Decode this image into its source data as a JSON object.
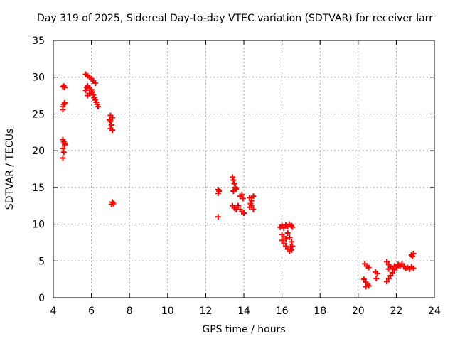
{
  "chart_data": {
    "type": "scatter",
    "title": "Day 319 of 2025, Sidereal Day-to-day VTEC variation (SDTVAR) for receiver larr",
    "xlabel": "GPS time / hours",
    "ylabel": "SDTVAR / TECUs",
    "xlim": [
      4,
      24
    ],
    "ylim": [
      0,
      35
    ],
    "xticks": [
      4,
      6,
      8,
      10,
      12,
      14,
      16,
      18,
      20,
      22,
      24
    ],
    "yticks": [
      0,
      5,
      10,
      15,
      20,
      25,
      30,
      35
    ],
    "grid": true,
    "marker": "+",
    "color": "#ff0000",
    "series": [
      {
        "name": "SDTVAR",
        "points": [
          [
            4.5,
            28.7
          ],
          [
            4.55,
            28.8
          ],
          [
            4.6,
            28.6
          ],
          [
            4.5,
            26.0
          ],
          [
            4.55,
            26.3
          ],
          [
            4.6,
            26.5
          ],
          [
            4.5,
            25.6
          ],
          [
            4.5,
            21.5
          ],
          [
            4.55,
            21.2
          ],
          [
            4.6,
            20.8
          ],
          [
            4.5,
            20.3
          ],
          [
            4.55,
            19.8
          ],
          [
            4.5,
            19.0
          ],
          [
            4.6,
            21.0
          ],
          [
            5.7,
            30.4
          ],
          [
            5.8,
            30.2
          ],
          [
            5.9,
            30.0
          ],
          [
            6.0,
            29.8
          ],
          [
            6.1,
            29.5
          ],
          [
            6.2,
            29.2
          ],
          [
            5.7,
            28.2
          ],
          [
            5.75,
            28.6
          ],
          [
            5.8,
            28.8
          ],
          [
            5.9,
            28.5
          ],
          [
            6.0,
            28.3
          ],
          [
            6.05,
            28.0
          ],
          [
            6.1,
            27.6
          ],
          [
            6.15,
            27.2
          ],
          [
            6.2,
            26.9
          ],
          [
            6.25,
            26.6
          ],
          [
            6.3,
            26.3
          ],
          [
            6.35,
            26.0
          ],
          [
            5.8,
            27.5
          ],
          [
            5.9,
            27.8
          ],
          [
            7.0,
            24.8
          ],
          [
            7.1,
            24.5
          ],
          [
            7.0,
            24.0
          ],
          [
            7.05,
            23.5
          ],
          [
            7.0,
            23.0
          ],
          [
            7.1,
            22.8
          ],
          [
            6.95,
            24.2
          ],
          [
            7.1,
            13.0
          ],
          [
            7.05,
            12.7
          ],
          [
            7.15,
            12.8
          ],
          [
            12.65,
            14.7
          ],
          [
            12.65,
            14.2
          ],
          [
            12.7,
            14.5
          ],
          [
            12.65,
            11.0
          ],
          [
            13.4,
            16.4
          ],
          [
            13.45,
            16.0
          ],
          [
            13.5,
            15.5
          ],
          [
            13.55,
            15.0
          ],
          [
            13.45,
            14.5
          ],
          [
            13.6,
            14.8
          ],
          [
            13.4,
            12.5
          ],
          [
            13.5,
            12.2
          ],
          [
            13.6,
            12.0
          ],
          [
            13.7,
            12.5
          ],
          [
            13.8,
            12.0
          ],
          [
            13.9,
            11.7
          ],
          [
            14.0,
            11.5
          ],
          [
            13.8,
            13.8
          ],
          [
            13.9,
            14.0
          ],
          [
            13.95,
            13.5
          ],
          [
            14.3,
            13.6
          ],
          [
            14.4,
            13.2
          ],
          [
            14.5,
            13.8
          ],
          [
            14.3,
            12.3
          ],
          [
            14.4,
            12.5
          ],
          [
            14.5,
            12.0
          ],
          [
            14.35,
            12.8
          ],
          [
            15.9,
            9.6
          ],
          [
            16.0,
            9.8
          ],
          [
            16.1,
            9.5
          ],
          [
            16.2,
            9.9
          ],
          [
            16.3,
            9.7
          ],
          [
            16.4,
            10.0
          ],
          [
            16.5,
            9.8
          ],
          [
            16.55,
            9.6
          ],
          [
            16.0,
            8.6
          ],
          [
            16.1,
            8.3
          ],
          [
            16.0,
            7.8
          ],
          [
            16.1,
            7.4
          ],
          [
            16.2,
            7.0
          ],
          [
            16.3,
            6.6
          ],
          [
            16.4,
            6.3
          ],
          [
            16.5,
            6.5
          ],
          [
            16.3,
            8.8
          ],
          [
            16.4,
            8.2
          ],
          [
            16.5,
            7.6
          ],
          [
            16.55,
            7.0
          ],
          [
            16.45,
            6.9
          ],
          [
            16.2,
            8.0
          ],
          [
            20.35,
            4.6
          ],
          [
            20.45,
            4.3
          ],
          [
            20.55,
            4.1
          ],
          [
            20.3,
            2.5
          ],
          [
            20.4,
            2.1
          ],
          [
            20.5,
            1.8
          ],
          [
            20.55,
            1.6
          ],
          [
            20.4,
            1.5
          ],
          [
            20.9,
            3.5
          ],
          [
            21.0,
            3.3
          ],
          [
            20.95,
            2.6
          ],
          [
            21.5,
            2.2
          ],
          [
            21.6,
            2.6
          ],
          [
            21.7,
            3.0
          ],
          [
            21.8,
            3.4
          ],
          [
            21.9,
            3.8
          ],
          [
            22.0,
            4.2
          ],
          [
            22.1,
            4.5
          ],
          [
            22.2,
            4.4
          ],
          [
            21.5,
            4.9
          ],
          [
            21.6,
            4.5
          ],
          [
            21.7,
            4.2
          ],
          [
            21.8,
            4.0
          ],
          [
            21.9,
            4.3
          ],
          [
            22.0,
            4.1
          ],
          [
            22.2,
            4.3
          ],
          [
            22.4,
            4.2
          ],
          [
            22.5,
            4.0
          ],
          [
            22.6,
            4.1
          ],
          [
            22.7,
            3.9
          ],
          [
            22.8,
            4.2
          ],
          [
            22.9,
            4.0
          ],
          [
            21.6,
            3.9
          ],
          [
            22.3,
            4.6
          ],
          [
            22.8,
            5.8
          ],
          [
            22.85,
            5.6
          ],
          [
            22.9,
            6.0
          ]
        ]
      }
    ]
  }
}
